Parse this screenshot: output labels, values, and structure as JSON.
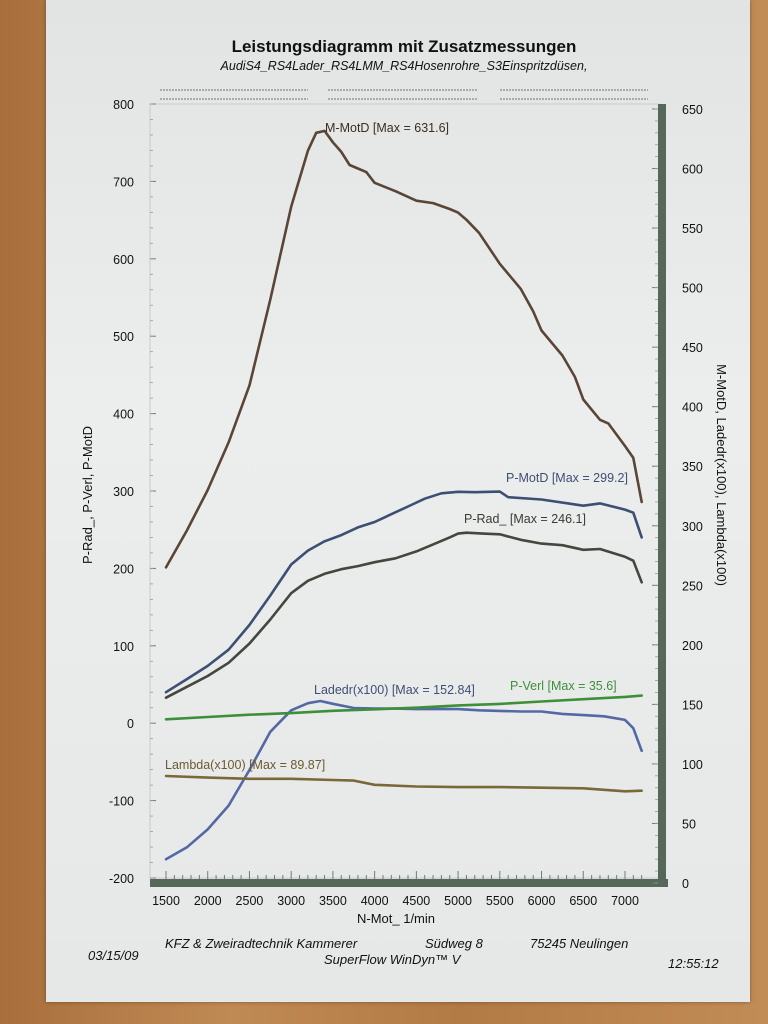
{
  "chart_data": {
    "type": "line",
    "title": "Leistungsdiagramm mit Zusatzmessungen",
    "subtitle": "AudiS4_RS4Lader_RS4LMM_RS4Hosenrohre_S3Einspritzdüsen,",
    "xlabel": "N-Mot_ 1/min",
    "ylabel_left": "P-Rad_, P-Verl, P-MotD",
    "ylabel_right": "M-MotD, Ladedr(x100), Lambda(x100)",
    "xlim": [
      1500,
      7200
    ],
    "ylim_left": [
      -200,
      800
    ],
    "ylim_right": [
      0,
      650
    ],
    "x_ticks": [
      1500,
      2000,
      2500,
      3000,
      3500,
      4000,
      4500,
      5000,
      5500,
      6000,
      6500,
      7000
    ],
    "y_left_ticks": [
      -200,
      -100,
      0,
      100,
      200,
      300,
      400,
      500,
      600,
      700,
      800
    ],
    "y_right_ticks": [
      0,
      50,
      100,
      150,
      200,
      250,
      300,
      350,
      400,
      450,
      500,
      550,
      600,
      650
    ],
    "grid": false,
    "series": [
      {
        "name": "M-MotD",
        "label": "M-MotD [Max = 631.6]",
        "axis": "right",
        "color": "#5a4536",
        "points": [
          [
            1500,
            265
          ],
          [
            1750,
            296
          ],
          [
            2000,
            330
          ],
          [
            2250,
            370
          ],
          [
            2500,
            418
          ],
          [
            2750,
            490
          ],
          [
            3000,
            568
          ],
          [
            3200,
            615
          ],
          [
            3300,
            630
          ],
          [
            3400,
            631.6
          ],
          [
            3500,
            622
          ],
          [
            3600,
            614
          ],
          [
            3700,
            603
          ],
          [
            3800,
            600
          ],
          [
            3900,
            597
          ],
          [
            4000,
            588
          ],
          [
            4250,
            581
          ],
          [
            4500,
            573
          ],
          [
            4700,
            571
          ],
          [
            4900,
            566
          ],
          [
            5000,
            563
          ],
          [
            5100,
            557
          ],
          [
            5250,
            546
          ],
          [
            5500,
            520
          ],
          [
            5750,
            499
          ],
          [
            5900,
            480
          ],
          [
            6000,
            464
          ],
          [
            6250,
            443
          ],
          [
            6400,
            425
          ],
          [
            6500,
            406
          ],
          [
            6700,
            389
          ],
          [
            6800,
            386
          ],
          [
            7000,
            367
          ],
          [
            7100,
            357
          ],
          [
            7200,
            320
          ]
        ]
      },
      {
        "name": "P-MotD",
        "label": "P-MotD [Max = 299.2]",
        "axis": "left",
        "color": "#3e4f74",
        "points": [
          [
            1500,
            40
          ],
          [
            1750,
            57
          ],
          [
            2000,
            74
          ],
          [
            2250,
            95
          ],
          [
            2500,
            127
          ],
          [
            2750,
            165
          ],
          [
            3000,
            205
          ],
          [
            3200,
            223
          ],
          [
            3400,
            235
          ],
          [
            3600,
            243
          ],
          [
            3800,
            253
          ],
          [
            4000,
            260
          ],
          [
            4200,
            270
          ],
          [
            4400,
            280
          ],
          [
            4600,
            290
          ],
          [
            4800,
            297
          ],
          [
            5000,
            299
          ],
          [
            5200,
            298.5
          ],
          [
            5500,
            299.2
          ],
          [
            5600,
            292
          ],
          [
            6000,
            289
          ],
          [
            6500,
            281
          ],
          [
            6700,
            284
          ],
          [
            7000,
            276
          ],
          [
            7100,
            272
          ],
          [
            7200,
            240
          ]
        ]
      },
      {
        "name": "P-Rad_",
        "label": "P-Rad_ [Max = 246.1]",
        "axis": "left",
        "color": "#45473e",
        "points": [
          [
            1500,
            33
          ],
          [
            1750,
            47
          ],
          [
            2000,
            61
          ],
          [
            2250,
            78
          ],
          [
            2500,
            103
          ],
          [
            2750,
            134
          ],
          [
            3000,
            168
          ],
          [
            3200,
            184
          ],
          [
            3400,
            193
          ],
          [
            3600,
            199
          ],
          [
            3800,
            203
          ],
          [
            4000,
            208
          ],
          [
            4250,
            213
          ],
          [
            4500,
            222
          ],
          [
            4700,
            231
          ],
          [
            4900,
            240
          ],
          [
            5000,
            245
          ],
          [
            5100,
            246.1
          ],
          [
            5300,
            245
          ],
          [
            5500,
            244
          ],
          [
            5750,
            237
          ],
          [
            6000,
            232
          ],
          [
            6250,
            230
          ],
          [
            6500,
            224
          ],
          [
            6700,
            225
          ],
          [
            7000,
            215
          ],
          [
            7100,
            210
          ],
          [
            7200,
            182
          ]
        ]
      },
      {
        "name": "Ladedr(x100)",
        "label": "Ladedr(x100) [Max = 152.84]",
        "axis": "right",
        "color": "#5468a6",
        "points": [
          [
            1500,
            20
          ],
          [
            1750,
            30
          ],
          [
            2000,
            45
          ],
          [
            2250,
            65
          ],
          [
            2500,
            95
          ],
          [
            2750,
            127
          ],
          [
            3000,
            145
          ],
          [
            3200,
            151
          ],
          [
            3350,
            152.84
          ],
          [
            3500,
            150.5
          ],
          [
            3750,
            147
          ],
          [
            4000,
            146.5
          ],
          [
            4250,
            146.5
          ],
          [
            4500,
            146
          ],
          [
            4750,
            146
          ],
          [
            5000,
            146
          ],
          [
            5250,
            145
          ],
          [
            5500,
            144.5
          ],
          [
            5750,
            144
          ],
          [
            6000,
            144
          ],
          [
            6250,
            142
          ],
          [
            6500,
            141
          ],
          [
            6750,
            140
          ],
          [
            7000,
            137
          ],
          [
            7100,
            130
          ],
          [
            7200,
            111
          ]
        ]
      },
      {
        "name": "P-Verl",
        "label": "P-Verl [Max = 35.6]",
        "axis": "left",
        "color": "#3d8f3a",
        "points": [
          [
            1500,
            5
          ],
          [
            2000,
            8
          ],
          [
            2500,
            11
          ],
          [
            3000,
            13
          ],
          [
            3500,
            16
          ],
          [
            4000,
            18
          ],
          [
            4500,
            20
          ],
          [
            5000,
            23
          ],
          [
            5500,
            25
          ],
          [
            6000,
            28
          ],
          [
            6500,
            31
          ],
          [
            7000,
            34
          ],
          [
            7200,
            35.6
          ]
        ]
      },
      {
        "name": "Lambda(x100)",
        "label": "Lambda(x100) [Max = 89.87]",
        "axis": "right",
        "color": "#7a6838",
        "points": [
          [
            1500,
            89.87
          ],
          [
            2000,
            88.5
          ],
          [
            2500,
            87.5
          ],
          [
            3000,
            87.5
          ],
          [
            3500,
            86.5
          ],
          [
            3750,
            86
          ],
          [
            4000,
            82.5
          ],
          [
            4500,
            81
          ],
          [
            5000,
            80.5
          ],
          [
            5500,
            80.5
          ],
          [
            6000,
            80
          ],
          [
            6500,
            79.5
          ],
          [
            7000,
            77
          ],
          [
            7200,
            77.5
          ]
        ]
      }
    ]
  },
  "footer": {
    "date": "03/15/09",
    "company": "KFZ & Zweiradtechnik Kammerer",
    "street": "Südweg 8",
    "city": "75245 Neulingen",
    "software": "SuperFlow WinDyn™ V",
    "time": "12:55:12"
  }
}
